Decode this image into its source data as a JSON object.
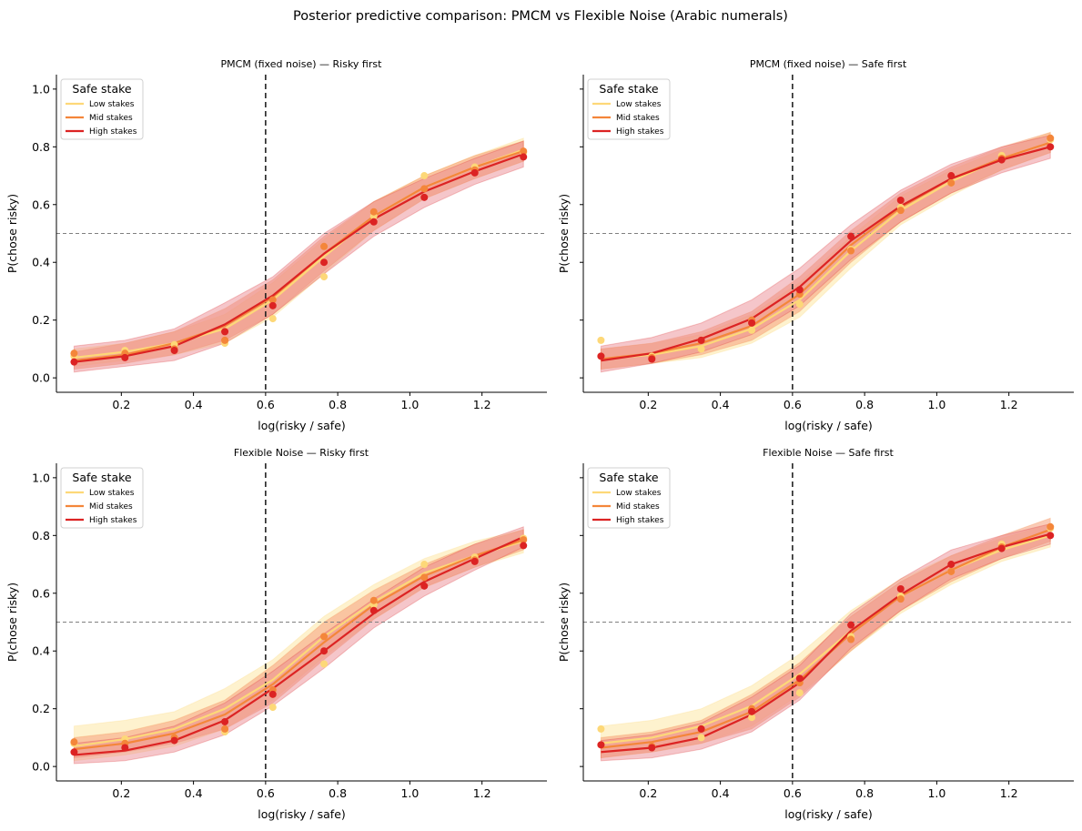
{
  "figure": {
    "title": "Posterior predictive comparison: PMCM vs Flexible Noise (Arabic numerals)"
  },
  "colors": {
    "low": "#fdd878",
    "mid": "#f4863a",
    "high": "#dc2323",
    "band_low": "#fde7a6",
    "band_mid": "#f6a07c",
    "band_high": "#e8818a",
    "vline": "#222222",
    "hline": "#808080"
  },
  "chart_data": [
    {
      "type": "line",
      "title": "PMCM (fixed noise) — Risky first",
      "xlabel": "log(risky / safe)",
      "ylabel": "P(chose risky)",
      "xlim": [
        0.02,
        1.38
      ],
      "ylim": [
        -0.05,
        1.05
      ],
      "xticks": [
        "0.2",
        "0.4",
        "0.6",
        "0.8",
        "1.0",
        "1.2"
      ],
      "yticks": [
        "0.0",
        "0.2",
        "0.4",
        "0.6",
        "0.8",
        "1.0"
      ],
      "vline_x": 0.6,
      "hline_y": 0.5,
      "legend": {
        "title": "Safe stake",
        "position": "upper-left",
        "entries": [
          "Low stakes",
          "Mid stakes",
          "High stakes"
        ]
      },
      "x": [
        0.069,
        0.21,
        0.347,
        0.487,
        0.62,
        0.762,
        0.9,
        1.04,
        1.18,
        1.315
      ],
      "series": [
        {
          "name": "Low stakes",
          "values": [
            0.07,
            0.09,
            0.12,
            0.17,
            0.27,
            0.42,
            0.56,
            0.66,
            0.73,
            0.79
          ],
          "lower": [
            0.04,
            0.06,
            0.08,
            0.12,
            0.21,
            0.36,
            0.51,
            0.62,
            0.69,
            0.75
          ],
          "upper": [
            0.1,
            0.12,
            0.16,
            0.22,
            0.33,
            0.48,
            0.61,
            0.7,
            0.77,
            0.83
          ],
          "points": [
            0.075,
            0.095,
            0.115,
            0.12,
            0.205,
            0.35,
            0.56,
            0.7,
            0.73,
            0.78
          ]
        },
        {
          "name": "Mid stakes",
          "values": [
            0.06,
            0.08,
            0.12,
            0.18,
            0.28,
            0.43,
            0.56,
            0.66,
            0.73,
            0.785
          ],
          "lower": [
            0.03,
            0.05,
            0.08,
            0.13,
            0.22,
            0.37,
            0.51,
            0.62,
            0.69,
            0.75
          ],
          "upper": [
            0.09,
            0.12,
            0.16,
            0.24,
            0.34,
            0.49,
            0.61,
            0.7,
            0.77,
            0.82
          ],
          "points": [
            0.085,
            0.085,
            0.1,
            0.13,
            0.27,
            0.455,
            0.575,
            0.655,
            0.72,
            0.785
          ]
        },
        {
          "name": "High stakes",
          "values": [
            0.055,
            0.075,
            0.11,
            0.185,
            0.285,
            0.43,
            0.55,
            0.645,
            0.715,
            0.775
          ],
          "lower": [
            0.02,
            0.04,
            0.06,
            0.12,
            0.22,
            0.36,
            0.49,
            0.59,
            0.67,
            0.73
          ],
          "upper": [
            0.11,
            0.13,
            0.17,
            0.26,
            0.35,
            0.5,
            0.61,
            0.69,
            0.76,
            0.82
          ],
          "points": [
            0.055,
            0.07,
            0.095,
            0.16,
            0.25,
            0.4,
            0.54,
            0.625,
            0.71,
            0.765
          ]
        }
      ]
    },
    {
      "type": "line",
      "title": "PMCM (fixed noise) — Safe first",
      "xlabel": "log(risky / safe)",
      "ylabel": "P(chose risky)",
      "xlim": [
        0.02,
        1.38
      ],
      "ylim": [
        -0.05,
        1.05
      ],
      "xticks": [
        "0.2",
        "0.4",
        "0.6",
        "0.8",
        "1.0",
        "1.2"
      ],
      "yticks": [
        "0.0",
        "0.2",
        "0.4",
        "0.6",
        "0.8",
        "1.0"
      ],
      "vline_x": 0.6,
      "hline_y": 0.5,
      "legend": {
        "title": "Safe stake",
        "position": "upper-left",
        "entries": [
          "Low stakes",
          "Mid stakes",
          "High stakes"
        ]
      },
      "x": [
        0.069,
        0.21,
        0.347,
        0.487,
        0.62,
        0.762,
        0.9,
        1.04,
        1.18,
        1.315
      ],
      "series": [
        {
          "name": "Low stakes",
          "values": [
            0.065,
            0.08,
            0.11,
            0.17,
            0.27,
            0.44,
            0.58,
            0.68,
            0.76,
            0.815
          ],
          "lower": [
            0.03,
            0.05,
            0.07,
            0.12,
            0.21,
            0.38,
            0.53,
            0.63,
            0.72,
            0.78
          ],
          "upper": [
            0.1,
            0.12,
            0.15,
            0.22,
            0.33,
            0.49,
            0.63,
            0.72,
            0.79,
            0.85
          ],
          "points": [
            0.13,
            0.075,
            0.1,
            0.165,
            0.255,
            0.445,
            0.59,
            0.675,
            0.77,
            0.825
          ]
        },
        {
          "name": "Mid stakes",
          "values": [
            0.065,
            0.085,
            0.12,
            0.18,
            0.29,
            0.46,
            0.59,
            0.69,
            0.76,
            0.815
          ],
          "lower": [
            0.03,
            0.05,
            0.08,
            0.13,
            0.23,
            0.4,
            0.54,
            0.64,
            0.72,
            0.78
          ],
          "upper": [
            0.1,
            0.12,
            0.16,
            0.23,
            0.35,
            0.51,
            0.64,
            0.73,
            0.8,
            0.85
          ],
          "points": [
            0.075,
            0.07,
            0.13,
            0.2,
            0.29,
            0.44,
            0.58,
            0.675,
            0.76,
            0.83
          ]
        },
        {
          "name": "High stakes",
          "values": [
            0.06,
            0.085,
            0.135,
            0.205,
            0.315,
            0.475,
            0.595,
            0.69,
            0.755,
            0.8
          ],
          "lower": [
            0.02,
            0.05,
            0.09,
            0.15,
            0.25,
            0.41,
            0.54,
            0.64,
            0.71,
            0.76
          ],
          "upper": [
            0.11,
            0.14,
            0.19,
            0.27,
            0.38,
            0.53,
            0.65,
            0.74,
            0.8,
            0.84
          ],
          "points": [
            0.075,
            0.065,
            0.13,
            0.19,
            0.305,
            0.49,
            0.615,
            0.7,
            0.755,
            0.8
          ]
        }
      ]
    },
    {
      "type": "line",
      "title": "Flexible Noise — Risky first",
      "xlabel": "log(risky / safe)",
      "ylabel": "P(chose risky)",
      "xlim": [
        0.02,
        1.38
      ],
      "ylim": [
        -0.05,
        1.05
      ],
      "xticks": [
        "0.2",
        "0.4",
        "0.6",
        "0.8",
        "1.0",
        "1.2"
      ],
      "yticks": [
        "0.0",
        "0.2",
        "0.4",
        "0.6",
        "0.8",
        "1.0"
      ],
      "vline_x": 0.6,
      "hline_y": 0.5,
      "legend": {
        "title": "Safe stake",
        "position": "upper-left",
        "entries": [
          "Low stakes",
          "Mid stakes",
          "High stakes"
        ]
      },
      "x": [
        0.069,
        0.21,
        0.347,
        0.487,
        0.62,
        0.762,
        0.9,
        1.04,
        1.18,
        1.315
      ],
      "series": [
        {
          "name": "Low stakes",
          "values": [
            0.07,
            0.095,
            0.13,
            0.2,
            0.3,
            0.45,
            0.57,
            0.67,
            0.73,
            0.78
          ],
          "lower": [
            0.02,
            0.04,
            0.07,
            0.13,
            0.23,
            0.38,
            0.51,
            0.62,
            0.69,
            0.74
          ],
          "upper": [
            0.14,
            0.16,
            0.19,
            0.27,
            0.37,
            0.52,
            0.63,
            0.72,
            0.78,
            0.82
          ],
          "points": [
            0.08,
            0.095,
            0.1,
            0.12,
            0.205,
            0.355,
            0.56,
            0.7,
            0.725,
            0.79
          ]
        },
        {
          "name": "Mid stakes",
          "values": [
            0.06,
            0.08,
            0.115,
            0.18,
            0.285,
            0.43,
            0.56,
            0.66,
            0.73,
            0.785
          ],
          "lower": [
            0.03,
            0.05,
            0.08,
            0.13,
            0.22,
            0.37,
            0.51,
            0.62,
            0.69,
            0.75
          ],
          "upper": [
            0.1,
            0.12,
            0.16,
            0.23,
            0.35,
            0.5,
            0.61,
            0.7,
            0.77,
            0.82
          ],
          "points": [
            0.085,
            0.08,
            0.1,
            0.13,
            0.265,
            0.45,
            0.575,
            0.655,
            0.715,
            0.785
          ]
        },
        {
          "name": "High stakes",
          "values": [
            0.04,
            0.055,
            0.09,
            0.16,
            0.27,
            0.4,
            0.53,
            0.64,
            0.72,
            0.795
          ],
          "lower": [
            0.01,
            0.02,
            0.05,
            0.11,
            0.21,
            0.34,
            0.48,
            0.59,
            0.68,
            0.76
          ],
          "upper": [
            0.08,
            0.1,
            0.14,
            0.22,
            0.33,
            0.46,
            0.58,
            0.69,
            0.77,
            0.83
          ],
          "points": [
            0.05,
            0.065,
            0.09,
            0.155,
            0.25,
            0.4,
            0.54,
            0.625,
            0.71,
            0.765
          ]
        }
      ]
    },
    {
      "type": "line",
      "title": "Flexible Noise — Safe first",
      "xlabel": "log(risky / safe)",
      "ylabel": "P(chose risky)",
      "xlim": [
        0.02,
        1.38
      ],
      "ylim": [
        -0.05,
        1.05
      ],
      "xticks": [
        "0.2",
        "0.4",
        "0.6",
        "0.8",
        "1.0",
        "1.2"
      ],
      "yticks": [
        "0.0",
        "0.2",
        "0.4",
        "0.6",
        "0.8",
        "1.0"
      ],
      "vline_x": 0.6,
      "hline_y": 0.5,
      "legend": {
        "title": "Safe stake",
        "position": "upper-left",
        "entries": [
          "Low stakes",
          "Mid stakes",
          "High stakes"
        ]
      },
      "x": [
        0.069,
        0.21,
        0.347,
        0.487,
        0.62,
        0.762,
        0.9,
        1.04,
        1.18,
        1.315
      ],
      "series": [
        {
          "name": "Low stakes",
          "values": [
            0.08,
            0.1,
            0.14,
            0.21,
            0.32,
            0.47,
            0.59,
            0.68,
            0.75,
            0.8
          ],
          "lower": [
            0.03,
            0.05,
            0.08,
            0.14,
            0.25,
            0.4,
            0.53,
            0.63,
            0.71,
            0.76
          ],
          "upper": [
            0.14,
            0.16,
            0.2,
            0.28,
            0.39,
            0.54,
            0.65,
            0.73,
            0.79,
            0.84
          ],
          "points": [
            0.13,
            0.07,
            0.1,
            0.17,
            0.255,
            0.45,
            0.59,
            0.675,
            0.77,
            0.825
          ]
        },
        {
          "name": "Mid stakes",
          "values": [
            0.065,
            0.085,
            0.12,
            0.19,
            0.3,
            0.46,
            0.59,
            0.68,
            0.76,
            0.82
          ],
          "lower": [
            0.03,
            0.05,
            0.08,
            0.13,
            0.24,
            0.4,
            0.54,
            0.64,
            0.72,
            0.78
          ],
          "upper": [
            0.1,
            0.12,
            0.16,
            0.25,
            0.36,
            0.52,
            0.64,
            0.73,
            0.8,
            0.86
          ],
          "points": [
            0.075,
            0.07,
            0.13,
            0.2,
            0.29,
            0.44,
            0.58,
            0.675,
            0.76,
            0.83
          ]
        },
        {
          "name": "High stakes",
          "values": [
            0.05,
            0.065,
            0.1,
            0.18,
            0.29,
            0.47,
            0.595,
            0.7,
            0.76,
            0.805
          ],
          "lower": [
            0.02,
            0.03,
            0.06,
            0.12,
            0.23,
            0.41,
            0.54,
            0.65,
            0.72,
            0.77
          ],
          "upper": [
            0.09,
            0.11,
            0.15,
            0.24,
            0.35,
            0.53,
            0.65,
            0.75,
            0.8,
            0.84
          ],
          "points": [
            0.075,
            0.065,
            0.13,
            0.19,
            0.305,
            0.49,
            0.615,
            0.7,
            0.755,
            0.8
          ]
        }
      ]
    }
  ]
}
